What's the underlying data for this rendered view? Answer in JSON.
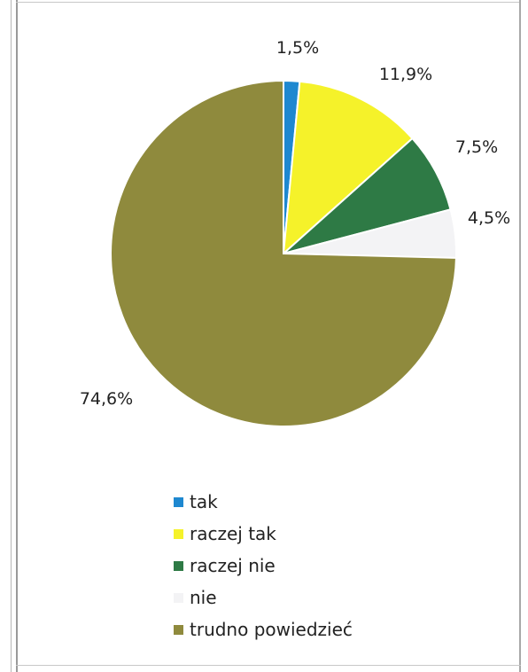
{
  "chart_data": {
    "type": "pie",
    "title": "",
    "start_angle_deg": 0,
    "direction": "clockwise",
    "series": [
      {
        "name": "",
        "slices": [
          {
            "label": "tak",
            "value": 1.5,
            "data_label": "1,5%",
            "color": "#1e88d0"
          },
          {
            "label": "raczej tak",
            "value": 11.9,
            "data_label": "11,9%",
            "color": "#f5f22a"
          },
          {
            "label": "raczej nie",
            "value": 7.5,
            "data_label": "7,5%",
            "color": "#2e7a45"
          },
          {
            "label": "nie",
            "value": 4.5,
            "data_label": "4,5%",
            "color": "#f3f3f5"
          },
          {
            "label": "trudno powiedzieć",
            "value": 74.6,
            "data_label": "74,6%",
            "color": "#8f8a3d"
          }
        ]
      }
    ],
    "legend": {
      "placement": "bottom",
      "entries": [
        "tak",
        "raczej tak",
        "raczej nie",
        "nie",
        "trudno powiedzieć"
      ]
    }
  }
}
